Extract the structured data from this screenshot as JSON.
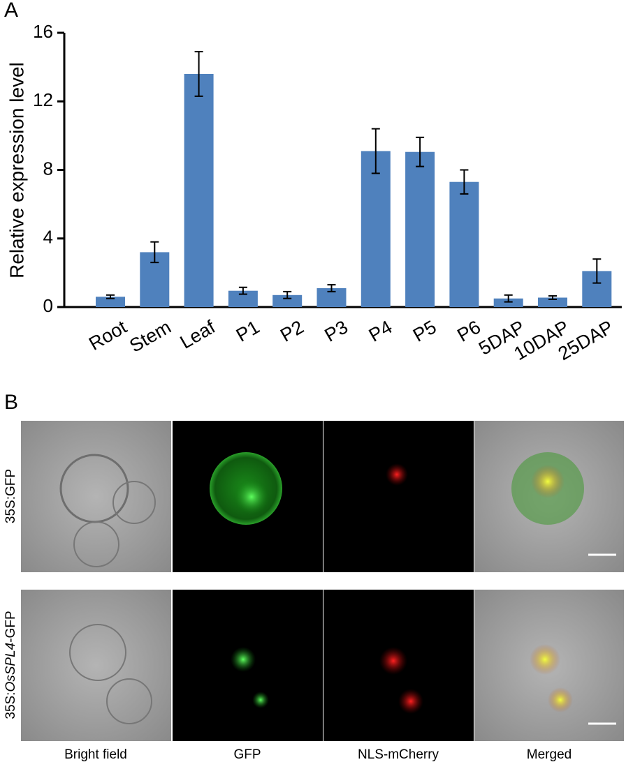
{
  "panel_labels": [
    "A",
    "B"
  ],
  "chart_data": {
    "type": "bar",
    "ylabel": "Relative expression level",
    "categories": [
      "Root",
      "Stem",
      "Leaf",
      "P1",
      "P2",
      "P3",
      "P4",
      "P5",
      "P6",
      "5DAP",
      "10DAP",
      "25DAP"
    ],
    "values": [
      0.6,
      3.2,
      13.6,
      0.95,
      0.7,
      1.1,
      9.1,
      9.05,
      7.3,
      0.5,
      0.55,
      2.1
    ],
    "errors": [
      0.1,
      0.6,
      1.3,
      0.2,
      0.2,
      0.2,
      1.3,
      0.85,
      0.7,
      0.2,
      0.1,
      0.7
    ],
    "color": "#4f81bd",
    "ylim": [
      0,
      16
    ],
    "yticks": [
      0,
      4,
      8,
      12,
      16
    ]
  },
  "micrographs": {
    "rows": [
      [
        "35S:GFP"
      ],
      [
        "35S:",
        "OsSPL4",
        "-GFP"
      ]
    ],
    "columns": [
      "Bright field",
      "GFP",
      "NLS-mCherry",
      "Merged"
    ]
  }
}
